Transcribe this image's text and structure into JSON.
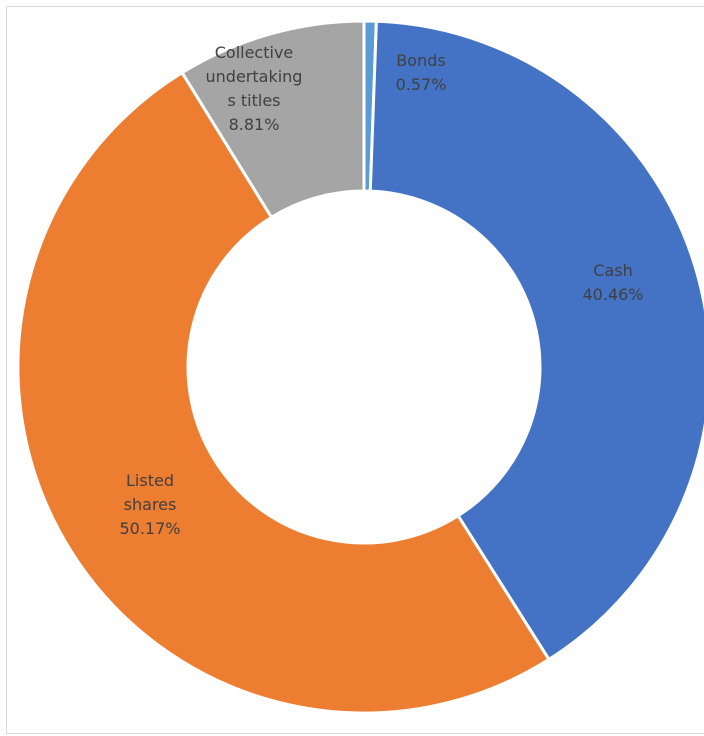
{
  "chart_data": {
    "type": "pie",
    "variant": "doughnut",
    "title": "",
    "legend": "none",
    "slices": [
      {
        "label_lines": [
          "Bonds",
          "0.57%"
        ],
        "value": 0.57,
        "color": "#5B9BD5"
      },
      {
        "label_lines": [
          "Cash",
          "40.46%"
        ],
        "value": 40.46,
        "color": "#4472C4"
      },
      {
        "label_lines": [
          "Listed",
          "shares",
          "50.17%"
        ],
        "value": 50.17,
        "color": "#ED7D31"
      },
      {
        "label_lines": [
          "Collective",
          "undertaking",
          "s titles",
          "8.81%"
        ],
        "value": 8.81,
        "color": "#A5A5A5"
      }
    ]
  }
}
